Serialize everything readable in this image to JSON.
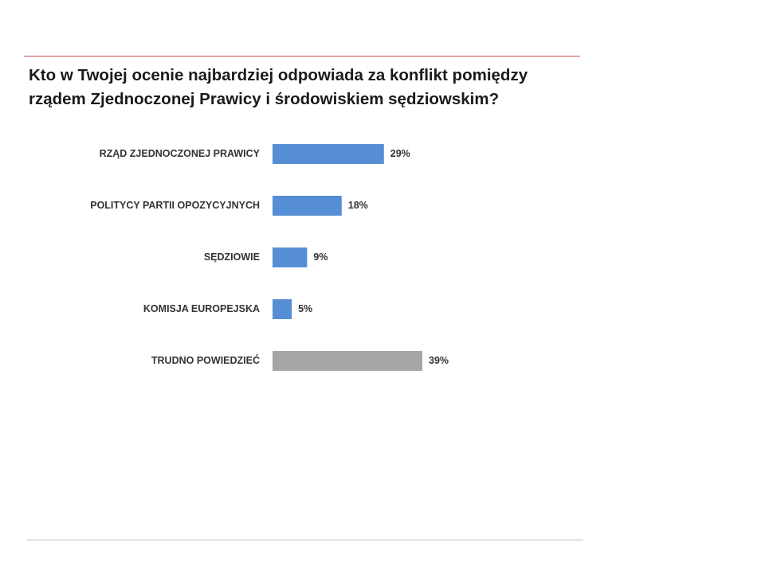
{
  "title_lines": [
    "Kto w Twojej ocenie najbardziej odpowiada za konflikt pomiędzy",
    "rządem Zjednoczonej Prawicy i środowiskiem sędziowskim?"
  ],
  "colors": {
    "accent_rule": "#c0504d",
    "bar_primary": "#558ed5",
    "bar_neutral": "#a6a6a6",
    "text": "#333333"
  },
  "chart_data": {
    "type": "bar",
    "orientation": "horizontal",
    "title": "Kto w Twojej ocenie najbardziej odpowiada za konflikt pomiędzy rządem Zjednoczonej Prawicy i środowiskiem sędziowskim?",
    "categories": [
      "RZĄD ZJEDNOCZONEJ PRAWICY",
      "POLITYCY PARTII OPOZYCYJNYCH",
      "SĘDZIOWIE",
      "KOMISJA EUROPEJSKA",
      "TRUDNO POWIEDZIEĆ"
    ],
    "values": [
      29,
      18,
      9,
      5,
      39
    ],
    "value_labels": [
      "29%",
      "18%",
      "9%",
      "5%",
      "39%"
    ],
    "bar_colors": [
      "#558ed5",
      "#558ed5",
      "#558ed5",
      "#558ed5",
      "#a6a6a6"
    ],
    "unit": "%",
    "xlim": [
      0,
      39
    ],
    "grid": false,
    "legend": "none"
  }
}
